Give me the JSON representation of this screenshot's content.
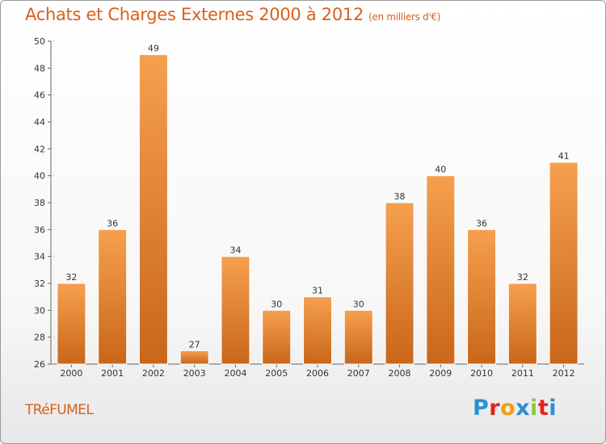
{
  "header": {
    "title": "Achats et Charges Externes 2000 à 2012",
    "subtitle": "(en milliers d'€)"
  },
  "footer": {
    "commune": "TRéFUMEL",
    "brand_letters": [
      "P",
      "r",
      "o",
      "x",
      "i",
      "t",
      "i"
    ],
    "brand_colors": [
      "#2a8fd6",
      "#e2231a",
      "#f39c12",
      "#2a8fd6",
      "#8dc63f",
      "#e2231a",
      "#2a8fd6"
    ]
  },
  "colors": {
    "bar_light": "#f6a04f",
    "bar_dark": "#c9661a",
    "axis": "#666666",
    "grid": "#aaaaaa",
    "accent": "#d9601c"
  },
  "chart_data": {
    "type": "bar",
    "title": "Achats et Charges Externes 2000 à 2012",
    "subtitle": "(en milliers d'€)",
    "xlabel": "",
    "ylabel": "",
    "categories": [
      "2000",
      "2001",
      "2002",
      "2003",
      "2004",
      "2005",
      "2006",
      "2007",
      "2008",
      "2009",
      "2010",
      "2011",
      "2012"
    ],
    "values": [
      32,
      36,
      49,
      27,
      34,
      30,
      31,
      30,
      38,
      40,
      36,
      32,
      41
    ],
    "ylim": [
      26,
      50
    ],
    "yticks": [
      26,
      28,
      30,
      32,
      34,
      36,
      38,
      40,
      42,
      44,
      46,
      48,
      50
    ],
    "grid": false,
    "legend": "none"
  }
}
